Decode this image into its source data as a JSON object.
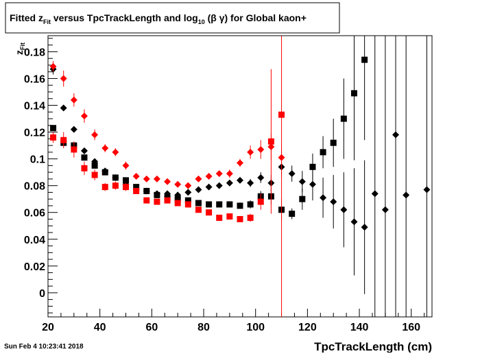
{
  "chart_data": {
    "type": "scatter",
    "title": {
      "pre": "Fitted  z",
      "sub1": "Fit",
      "mid": "  versus TpcTrackLength and log",
      "sub2": "10",
      "post": " (β γ) for Global kaon+"
    },
    "xlabel": "TpcTrackLength (cm)",
    "ylabel": {
      "main": "z",
      "sub": "Fit"
    },
    "timestamp": "Sun Feb  4 10:23:41 2018",
    "xlim": [
      20,
      168
    ],
    "ylim": [
      -0.018,
      0.192
    ],
    "x_ticks": [
      20,
      40,
      60,
      80,
      100,
      120,
      140,
      160
    ],
    "y_ticks": [
      0,
      0.02,
      0.04,
      0.06,
      0.08,
      0.1,
      0.12,
      0.14,
      0.16,
      0.18
    ],
    "colors": {
      "black": "#000000",
      "red": "#ff0000"
    },
    "series": [
      {
        "marker": "diamond",
        "color": "#000000",
        "xerr": 1,
        "points": [
          {
            "x": 22,
            "y": 0.167,
            "e": 0.004
          },
          {
            "x": 26,
            "y": 0.138,
            "e": 0.002
          },
          {
            "x": 30,
            "y": 0.122,
            "e": 0.002
          },
          {
            "x": 34,
            "y": 0.106,
            "e": 0.002
          },
          {
            "x": 38,
            "y": 0.098,
            "e": 0.002
          },
          {
            "x": 42,
            "y": 0.091,
            "e": 0.002
          },
          {
            "x": 46,
            "y": 0.086,
            "e": 0.002
          },
          {
            "x": 50,
            "y": 0.081,
            "e": 0.002
          },
          {
            "x": 54,
            "y": 0.077,
            "e": 0.002
          },
          {
            "x": 58,
            "y": 0.076,
            "e": 0.002
          },
          {
            "x": 62,
            "y": 0.074,
            "e": 0.002
          },
          {
            "x": 66,
            "y": 0.074,
            "e": 0.002
          },
          {
            "x": 70,
            "y": 0.073,
            "e": 0.002
          },
          {
            "x": 74,
            "y": 0.075,
            "e": 0.002
          },
          {
            "x": 78,
            "y": 0.077,
            "e": 0.002
          },
          {
            "x": 82,
            "y": 0.079,
            "e": 0.002
          },
          {
            "x": 86,
            "y": 0.08,
            "e": 0.002
          },
          {
            "x": 90,
            "y": 0.082,
            "e": 0.002
          },
          {
            "x": 94,
            "y": 0.084,
            "e": 0.002
          },
          {
            "x": 98,
            "y": 0.082,
            "e": 0.003
          },
          {
            "x": 102,
            "y": 0.086,
            "e": 0.004
          },
          {
            "x": 106,
            "y": 0.082,
            "e": 0.006
          },
          {
            "x": 110,
            "y": 0.094,
            "e": 0.008
          },
          {
            "x": 114,
            "y": 0.089,
            "e": 0.006
          },
          {
            "x": 118,
            "y": 0.083,
            "e": 0.008
          },
          {
            "x": 122,
            "y": 0.081,
            "e": 0.012
          },
          {
            "x": 126,
            "y": 0.071,
            "e": 0.015
          },
          {
            "x": 130,
            "y": 0.068,
            "e": 0.02
          },
          {
            "x": 134,
            "y": 0.062,
            "e": 0.028
          },
          {
            "x": 138,
            "y": 0.053,
            "e": 0.04
          },
          {
            "x": 142,
            "y": 0.049,
            "e": 0.05
          },
          {
            "x": 146,
            "y": 0.074,
            "e": 0.2
          },
          {
            "x": 150,
            "y": 0.062,
            "e": 0.2
          },
          {
            "x": 154,
            "y": 0.118,
            "e": 0.2
          },
          {
            "x": 158,
            "y": 0.073,
            "e": 0.2
          },
          {
            "x": 166,
            "y": 0.077,
            "e": 0.2
          }
        ]
      },
      {
        "marker": "square",
        "color": "#000000",
        "xerr": 1,
        "points": [
          {
            "x": 22,
            "y": 0.123,
            "e": 0.002
          },
          {
            "x": 26,
            "y": 0.112,
            "e": 0.002
          },
          {
            "x": 30,
            "y": 0.11,
            "e": 0.002
          },
          {
            "x": 34,
            "y": 0.101,
            "e": 0.002
          },
          {
            "x": 38,
            "y": 0.095,
            "e": 0.002
          },
          {
            "x": 42,
            "y": 0.09,
            "e": 0.002
          },
          {
            "x": 46,
            "y": 0.086,
            "e": 0.002
          },
          {
            "x": 50,
            "y": 0.084,
            "e": 0.002
          },
          {
            "x": 54,
            "y": 0.079,
            "e": 0.002
          },
          {
            "x": 58,
            "y": 0.076,
            "e": 0.002
          },
          {
            "x": 62,
            "y": 0.073,
            "e": 0.002
          },
          {
            "x": 66,
            "y": 0.071,
            "e": 0.002
          },
          {
            "x": 70,
            "y": 0.07,
            "e": 0.002
          },
          {
            "x": 74,
            "y": 0.069,
            "e": 0.002
          },
          {
            "x": 78,
            "y": 0.067,
            "e": 0.002
          },
          {
            "x": 82,
            "y": 0.066,
            "e": 0.002
          },
          {
            "x": 86,
            "y": 0.066,
            "e": 0.002
          },
          {
            "x": 90,
            "y": 0.066,
            "e": 0.002
          },
          {
            "x": 94,
            "y": 0.065,
            "e": 0.002
          },
          {
            "x": 98,
            "y": 0.066,
            "e": 0.003
          },
          {
            "x": 102,
            "y": 0.072,
            "e": 0.004
          },
          {
            "x": 106,
            "y": 0.072,
            "e": 0.006
          },
          {
            "x": 110,
            "y": 0.062,
            "e": 0.008
          },
          {
            "x": 114,
            "y": 0.059,
            "e": 0.004
          },
          {
            "x": 118,
            "y": 0.07,
            "e": 0.008
          },
          {
            "x": 122,
            "y": 0.094,
            "e": 0.01
          },
          {
            "x": 126,
            "y": 0.105,
            "e": 0.012
          },
          {
            "x": 130,
            "y": 0.112,
            "e": 0.018
          },
          {
            "x": 134,
            "y": 0.13,
            "e": 0.03
          },
          {
            "x": 138,
            "y": 0.149,
            "e": 0.05
          },
          {
            "x": 142,
            "y": 0.174,
            "e": 0.06
          }
        ]
      },
      {
        "marker": "diamond",
        "color": "#ff0000",
        "xerr": 1,
        "points": [
          {
            "x": 22,
            "y": 0.169,
            "e": 0.004
          },
          {
            "x": 26,
            "y": 0.16,
            "e": 0.006
          },
          {
            "x": 30,
            "y": 0.144,
            "e": 0.005
          },
          {
            "x": 34,
            "y": 0.132,
            "e": 0.005
          },
          {
            "x": 38,
            "y": 0.118,
            "e": 0.004
          },
          {
            "x": 42,
            "y": 0.108,
            "e": 0.003
          },
          {
            "x": 46,
            "y": 0.105,
            "e": 0.003
          },
          {
            "x": 50,
            "y": 0.095,
            "e": 0.003
          },
          {
            "x": 54,
            "y": 0.087,
            "e": 0.002
          },
          {
            "x": 58,
            "y": 0.085,
            "e": 0.002
          },
          {
            "x": 62,
            "y": 0.085,
            "e": 0.002
          },
          {
            "x": 66,
            "y": 0.083,
            "e": 0.002
          },
          {
            "x": 70,
            "y": 0.081,
            "e": 0.002
          },
          {
            "x": 74,
            "y": 0.08,
            "e": 0.002
          },
          {
            "x": 78,
            "y": 0.085,
            "e": 0.002
          },
          {
            "x": 82,
            "y": 0.087,
            "e": 0.002
          },
          {
            "x": 86,
            "y": 0.089,
            "e": 0.002
          },
          {
            "x": 90,
            "y": 0.089,
            "e": 0.003
          },
          {
            "x": 94,
            "y": 0.097,
            "e": 0.003
          },
          {
            "x": 98,
            "y": 0.105,
            "e": 0.005
          },
          {
            "x": 102,
            "y": 0.107,
            "e": 0.007
          },
          {
            "x": 106,
            "y": 0.109,
            "e": 0.01
          },
          {
            "x": 110,
            "y": 0.101,
            "e": 0.008
          }
        ]
      },
      {
        "marker": "square",
        "color": "#ff0000",
        "xerr": 1,
        "points": [
          {
            "x": 22,
            "y": 0.116,
            "e": 0.004
          },
          {
            "x": 26,
            "y": 0.114,
            "e": 0.006
          },
          {
            "x": 30,
            "y": 0.107,
            "e": 0.006
          },
          {
            "x": 34,
            "y": 0.093,
            "e": 0.005
          },
          {
            "x": 38,
            "y": 0.088,
            "e": 0.004
          },
          {
            "x": 42,
            "y": 0.079,
            "e": 0.003
          },
          {
            "x": 46,
            "y": 0.08,
            "e": 0.003
          },
          {
            "x": 50,
            "y": 0.079,
            "e": 0.003
          },
          {
            "x": 54,
            "y": 0.076,
            "e": 0.002
          },
          {
            "x": 58,
            "y": 0.069,
            "e": 0.002
          },
          {
            "x": 62,
            "y": 0.068,
            "e": 0.002
          },
          {
            "x": 66,
            "y": 0.069,
            "e": 0.002
          },
          {
            "x": 70,
            "y": 0.067,
            "e": 0.002
          },
          {
            "x": 74,
            "y": 0.066,
            "e": 0.002
          },
          {
            "x": 78,
            "y": 0.062,
            "e": 0.002
          },
          {
            "x": 82,
            "y": 0.06,
            "e": 0.002
          },
          {
            "x": 86,
            "y": 0.056,
            "e": 0.002
          },
          {
            "x": 90,
            "y": 0.057,
            "e": 0.002
          },
          {
            "x": 94,
            "y": 0.055,
            "e": 0.002
          },
          {
            "x": 98,
            "y": 0.056,
            "e": 0.003
          },
          {
            "x": 102,
            "y": 0.068,
            "e": 0.006
          },
          {
            "x": 106,
            "y": 0.113,
            "e": 0.054
          },
          {
            "x": 110,
            "y": 0.133,
            "e": 0.2
          }
        ]
      }
    ]
  }
}
